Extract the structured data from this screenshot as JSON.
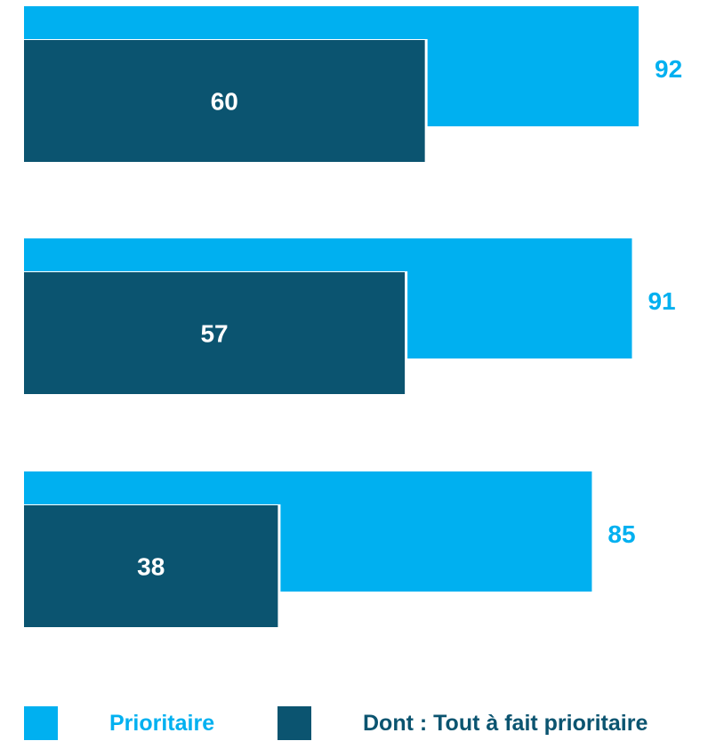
{
  "chart_data": {
    "type": "bar",
    "orientation": "horizontal",
    "categories": [
      "",
      "",
      ""
    ],
    "series": [
      {
        "name": "Prioritaire",
        "values": [
          92,
          91,
          85
        ],
        "color": "#00B0F0",
        "label_color": "#00B0F0"
      },
      {
        "name": "Dont : Tout à fait prioritaire",
        "values": [
          60,
          57,
          38
        ],
        "color": "#0B5470",
        "label_color": "#FFFFFF"
      }
    ],
    "xlim": [
      0,
      100
    ],
    "grid": false,
    "axes_visible": false,
    "legend_position": "bottom"
  },
  "legend": {
    "items": [
      {
        "label": "Prioritaire",
        "color": "#00B0F0",
        "text_color": "#00B0F0"
      },
      {
        "label": "Dont : Tout à fait prioritaire",
        "color": "#0B5470",
        "text_color": "#0B5470"
      }
    ]
  }
}
